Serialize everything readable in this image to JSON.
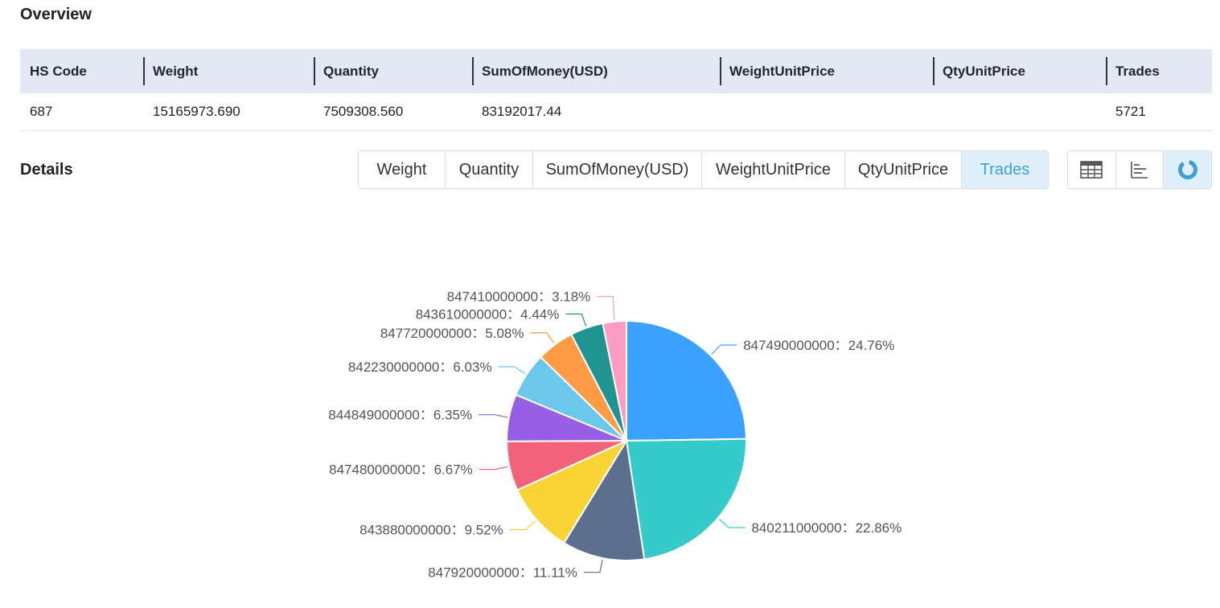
{
  "overview": {
    "title": "Overview",
    "columns": [
      "HS Code",
      "Weight",
      "Quantity",
      "SumOfMoney(USD)",
      "WeightUnitPrice",
      "QtyUnitPrice",
      "Trades"
    ],
    "row": [
      "687",
      "15165973.690",
      "7509308.560",
      "83192017.44",
      "",
      "",
      "5721"
    ]
  },
  "details": {
    "title": "Details",
    "tabs": [
      "Weight",
      "Quantity",
      "SumOfMoney(USD)",
      "WeightUnitPrice",
      "QtyUnitPrice",
      "Trades"
    ],
    "active_tab": "Trades",
    "view_buttons": [
      {
        "icon": "table-icon",
        "active": false
      },
      {
        "icon": "bar-chart-icon",
        "active": false
      },
      {
        "icon": "pie-chart-icon",
        "active": true
      }
    ]
  },
  "chart_data": {
    "type": "pie",
    "title": "",
    "separator": "：",
    "slices": [
      {
        "label": "847490000000",
        "percent": "24.76%",
        "value": 24.76,
        "color": "#3ba1ff"
      },
      {
        "label": "840211000000",
        "percent": "22.86%",
        "value": 22.86,
        "color": "#36cbcb"
      },
      {
        "label": "847920000000",
        "percent": "11.11%",
        "value": 11.11,
        "color": "#5b6f8f"
      },
      {
        "label": "843880000000",
        "percent": "9.52%",
        "value": 9.52,
        "color": "#fad337"
      },
      {
        "label": "847480000000",
        "percent": "6.67%",
        "value": 6.67,
        "color": "#f2637b"
      },
      {
        "label": "844849000000",
        "percent": "6.35%",
        "value": 6.35,
        "color": "#975fe4"
      },
      {
        "label": "842230000000",
        "percent": "6.03%",
        "value": 6.03,
        "color": "#6cc7ed"
      },
      {
        "label": "847720000000",
        "percent": "5.08%",
        "value": 5.08,
        "color": "#ff9a45"
      },
      {
        "label": "843610000000",
        "percent": "4.44%",
        "value": 4.44,
        "color": "#1f9490"
      },
      {
        "label": "847410000000",
        "percent": "3.18%",
        "value": 3.18,
        "color": "#ff9cc3"
      }
    ]
  }
}
